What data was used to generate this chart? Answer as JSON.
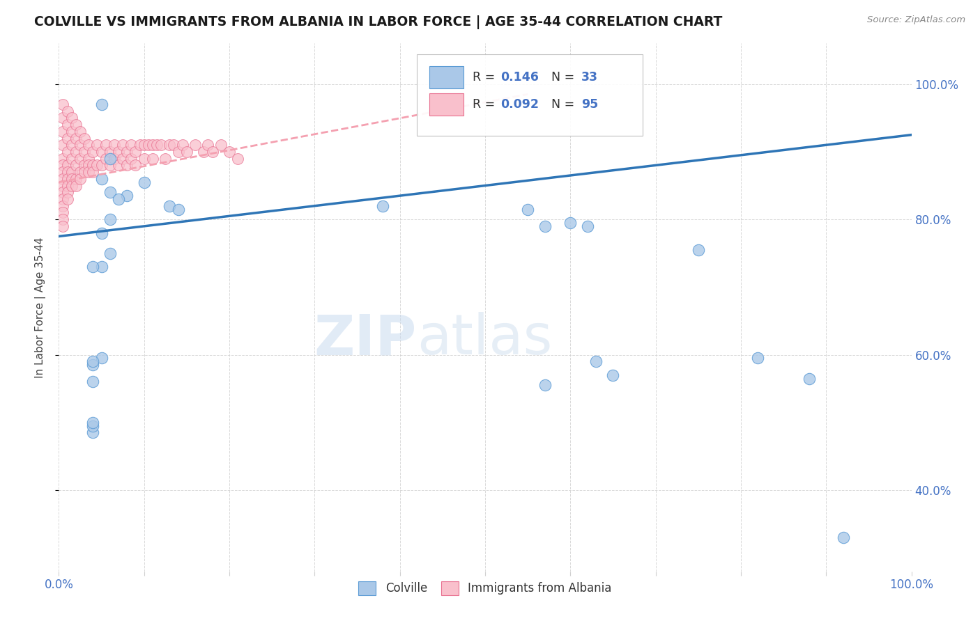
{
  "title": "COLVILLE VS IMMIGRANTS FROM ALBANIA IN LABOR FORCE | AGE 35-44 CORRELATION CHART",
  "source": "Source: ZipAtlas.com",
  "ylabel": "In Labor Force | Age 35-44",
  "xlim": [
    0.0,
    1.0
  ],
  "ylim": [
    0.28,
    1.06
  ],
  "blue_R": "0.146",
  "blue_N": "33",
  "pink_R": "0.092",
  "pink_N": "95",
  "blue_scatter_x": [
    0.04,
    0.08,
    0.1,
    0.13,
    0.14,
    0.05,
    0.06,
    0.06,
    0.05,
    0.07,
    0.06,
    0.05,
    0.06,
    0.05,
    0.38,
    0.55,
    0.57,
    0.6,
    0.62,
    0.75,
    0.82,
    0.88,
    0.92,
    0.04,
    0.05,
    0.04,
    0.04,
    0.04,
    0.04,
    0.04,
    0.63,
    0.65,
    0.57
  ],
  "blue_scatter_y": [
    0.485,
    0.835,
    0.855,
    0.82,
    0.815,
    0.97,
    0.89,
    0.84,
    0.86,
    0.83,
    0.8,
    0.78,
    0.75,
    0.73,
    0.82,
    0.815,
    0.79,
    0.795,
    0.79,
    0.755,
    0.595,
    0.565,
    0.33,
    0.585,
    0.595,
    0.73,
    0.495,
    0.5,
    0.59,
    0.56,
    0.59,
    0.57,
    0.555
  ],
  "pink_scatter_x": [
    0.005,
    0.005,
    0.005,
    0.005,
    0.005,
    0.005,
    0.005,
    0.005,
    0.005,
    0.005,
    0.005,
    0.005,
    0.005,
    0.005,
    0.005,
    0.01,
    0.01,
    0.01,
    0.01,
    0.01,
    0.01,
    0.01,
    0.01,
    0.01,
    0.01,
    0.015,
    0.015,
    0.015,
    0.015,
    0.015,
    0.015,
    0.015,
    0.02,
    0.02,
    0.02,
    0.02,
    0.02,
    0.02,
    0.025,
    0.025,
    0.025,
    0.025,
    0.025,
    0.03,
    0.03,
    0.03,
    0.03,
    0.035,
    0.035,
    0.035,
    0.035,
    0.04,
    0.04,
    0.04,
    0.045,
    0.045,
    0.05,
    0.05,
    0.055,
    0.055,
    0.06,
    0.06,
    0.065,
    0.065,
    0.07,
    0.07,
    0.075,
    0.075,
    0.08,
    0.08,
    0.085,
    0.085,
    0.09,
    0.09,
    0.095,
    0.1,
    0.1,
    0.105,
    0.11,
    0.11,
    0.115,
    0.12,
    0.125,
    0.13,
    0.135,
    0.14,
    0.145,
    0.15,
    0.16,
    0.17,
    0.175,
    0.18,
    0.19,
    0.2,
    0.21
  ],
  "pink_scatter_y": [
    0.97,
    0.95,
    0.93,
    0.91,
    0.89,
    0.88,
    0.87,
    0.86,
    0.85,
    0.84,
    0.83,
    0.82,
    0.81,
    0.8,
    0.79,
    0.96,
    0.94,
    0.92,
    0.9,
    0.88,
    0.87,
    0.86,
    0.85,
    0.84,
    0.83,
    0.95,
    0.93,
    0.91,
    0.89,
    0.87,
    0.86,
    0.85,
    0.94,
    0.92,
    0.9,
    0.88,
    0.86,
    0.85,
    0.93,
    0.91,
    0.89,
    0.87,
    0.86,
    0.92,
    0.9,
    0.88,
    0.87,
    0.91,
    0.89,
    0.88,
    0.87,
    0.9,
    0.88,
    0.87,
    0.91,
    0.88,
    0.9,
    0.88,
    0.91,
    0.89,
    0.9,
    0.88,
    0.91,
    0.89,
    0.9,
    0.88,
    0.91,
    0.89,
    0.9,
    0.88,
    0.91,
    0.89,
    0.9,
    0.88,
    0.91,
    0.91,
    0.89,
    0.91,
    0.91,
    0.89,
    0.91,
    0.91,
    0.89,
    0.91,
    0.91,
    0.9,
    0.91,
    0.9,
    0.91,
    0.9,
    0.91,
    0.9,
    0.91,
    0.9,
    0.89
  ],
  "blue_line_start_x": 0.0,
  "blue_line_end_x": 1.0,
  "blue_line_start_y": 0.775,
  "blue_line_end_y": 0.925,
  "pink_line_start_x": 0.0,
  "pink_line_end_x": 0.55,
  "pink_line_start_y": 0.855,
  "pink_line_end_y": 0.985,
  "watermark_zip": "ZIP",
  "watermark_atlas": "atlas",
  "bg_color": "#ffffff",
  "blue_color": "#aac8e8",
  "blue_edge_color": "#5b9bd5",
  "pink_color": "#f9c0cc",
  "pink_edge_color": "#e87090",
  "blue_line_color": "#2e75b6",
  "pink_line_color": "#f4a0b0",
  "grid_color": "#d0d0d0",
  "title_color": "#1a1a1a",
  "source_color": "#888888",
  "axis_label_color": "#444444",
  "tick_color": "#4472c4",
  "legend_text_color": "#333333",
  "legend_value_color": "#4472c4"
}
